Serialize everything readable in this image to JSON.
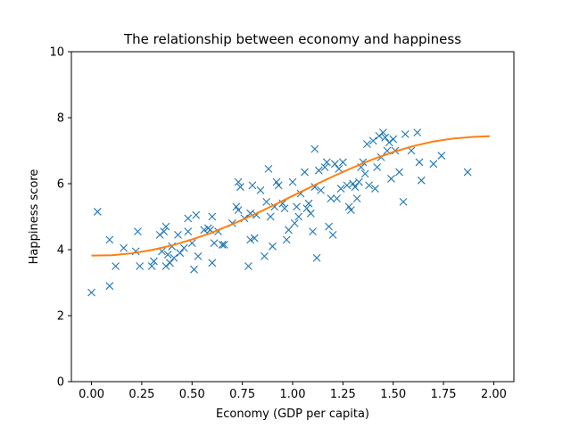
{
  "chart_data": {
    "type": "scatter",
    "title": "The relationship between economy and happiness",
    "xlabel": "Economy (GDP per capita)",
    "ylabel": "Happiness score",
    "xlim": [
      -0.1,
      2.1
    ],
    "ylim": [
      0,
      10
    ],
    "xticks": [
      0.0,
      0.25,
      0.5,
      0.75,
      1.0,
      1.25,
      1.5,
      1.75,
      2.0
    ],
    "xtick_labels": [
      "0.00",
      "0.25",
      "0.50",
      "0.75",
      "1.00",
      "1.25",
      "1.50",
      "1.75",
      "2.00"
    ],
    "yticks": [
      0,
      2,
      4,
      6,
      8,
      10
    ],
    "ytick_labels": [
      "0",
      "2",
      "4",
      "6",
      "8",
      "10"
    ],
    "grid": false,
    "series": [
      {
        "kind": "scatter",
        "marker": "x",
        "color": "#1f77b4",
        "points": [
          [
            0.0,
            2.7
          ],
          [
            0.03,
            5.15
          ],
          [
            0.09,
            2.9
          ],
          [
            0.09,
            4.3
          ],
          [
            0.12,
            3.5
          ],
          [
            0.16,
            4.05
          ],
          [
            0.22,
            3.95
          ],
          [
            0.23,
            4.55
          ],
          [
            0.24,
            3.5
          ],
          [
            0.3,
            3.5
          ],
          [
            0.31,
            3.65
          ],
          [
            0.34,
            4.45
          ],
          [
            0.35,
            3.95
          ],
          [
            0.36,
            4.55
          ],
          [
            0.37,
            4.7
          ],
          [
            0.37,
            3.5
          ],
          [
            0.38,
            3.85
          ],
          [
            0.39,
            3.6
          ],
          [
            0.4,
            4.1
          ],
          [
            0.41,
            3.75
          ],
          [
            0.43,
            4.45
          ],
          [
            0.44,
            3.9
          ],
          [
            0.46,
            4.05
          ],
          [
            0.48,
            4.95
          ],
          [
            0.48,
            4.55
          ],
          [
            0.5,
            4.2
          ],
          [
            0.51,
            3.4
          ],
          [
            0.52,
            5.05
          ],
          [
            0.53,
            3.8
          ],
          [
            0.56,
            4.6
          ],
          [
            0.58,
            4.65
          ],
          [
            0.59,
            4.6
          ],
          [
            0.6,
            3.6
          ],
          [
            0.6,
            5.0
          ],
          [
            0.61,
            4.2
          ],
          [
            0.63,
            4.55
          ],
          [
            0.65,
            4.15
          ],
          [
            0.66,
            4.15
          ],
          [
            0.7,
            4.8
          ],
          [
            0.72,
            5.3
          ],
          [
            0.73,
            6.05
          ],
          [
            0.73,
            5.2
          ],
          [
            0.74,
            5.9
          ],
          [
            0.76,
            4.95
          ],
          [
            0.78,
            3.5
          ],
          [
            0.79,
            5.1
          ],
          [
            0.79,
            4.3
          ],
          [
            0.8,
            5.95
          ],
          [
            0.81,
            4.35
          ],
          [
            0.82,
            5.05
          ],
          [
            0.84,
            5.8
          ],
          [
            0.86,
            3.8
          ],
          [
            0.87,
            5.45
          ],
          [
            0.88,
            6.45
          ],
          [
            0.89,
            5.0
          ],
          [
            0.9,
            4.1
          ],
          [
            0.91,
            5.3
          ],
          [
            0.92,
            6.05
          ],
          [
            0.93,
            5.95
          ],
          [
            0.95,
            5.4
          ],
          [
            0.96,
            5.25
          ],
          [
            0.97,
            4.3
          ],
          [
            0.98,
            4.6
          ],
          [
            1.0,
            6.05
          ],
          [
            1.01,
            4.8
          ],
          [
            1.02,
            5.3
          ],
          [
            1.03,
            5.0
          ],
          [
            1.04,
            5.7
          ],
          [
            1.06,
            6.35
          ],
          [
            1.07,
            5.25
          ],
          [
            1.08,
            5.4
          ],
          [
            1.09,
            5.1
          ],
          [
            1.1,
            4.55
          ],
          [
            1.11,
            7.05
          ],
          [
            1.11,
            5.9
          ],
          [
            1.12,
            3.75
          ],
          [
            1.13,
            6.4
          ],
          [
            1.14,
            5.8
          ],
          [
            1.16,
            6.5
          ],
          [
            1.17,
            6.65
          ],
          [
            1.18,
            4.7
          ],
          [
            1.19,
            5.55
          ],
          [
            1.2,
            4.45
          ],
          [
            1.21,
            6.6
          ],
          [
            1.22,
            5.55
          ],
          [
            1.23,
            6.45
          ],
          [
            1.24,
            5.85
          ],
          [
            1.25,
            6.65
          ],
          [
            1.27,
            5.95
          ],
          [
            1.28,
            5.3
          ],
          [
            1.29,
            5.2
          ],
          [
            1.3,
            6.0
          ],
          [
            1.31,
            5.9
          ],
          [
            1.32,
            5.55
          ],
          [
            1.33,
            6.05
          ],
          [
            1.34,
            6.5
          ],
          [
            1.35,
            6.65
          ],
          [
            1.36,
            6.3
          ],
          [
            1.37,
            7.2
          ],
          [
            1.38,
            5.95
          ],
          [
            1.4,
            7.3
          ],
          [
            1.41,
            5.85
          ],
          [
            1.42,
            6.5
          ],
          [
            1.43,
            7.45
          ],
          [
            1.44,
            6.8
          ],
          [
            1.45,
            7.55
          ],
          [
            1.46,
            7.4
          ],
          [
            1.47,
            7.0
          ],
          [
            1.48,
            7.25
          ],
          [
            1.49,
            6.15
          ],
          [
            1.5,
            7.35
          ],
          [
            1.51,
            7.0
          ],
          [
            1.53,
            6.35
          ],
          [
            1.55,
            5.45
          ],
          [
            1.56,
            7.5
          ],
          [
            1.59,
            7.0
          ],
          [
            1.62,
            7.55
          ],
          [
            1.63,
            6.65
          ],
          [
            1.64,
            6.1
          ],
          [
            1.7,
            6.6
          ],
          [
            1.74,
            6.85
          ],
          [
            1.87,
            6.35
          ]
        ]
      },
      {
        "kind": "line",
        "color": "#ff7f0e",
        "points": [
          [
            0.0,
            3.82
          ],
          [
            0.1,
            3.83
          ],
          [
            0.2,
            3.89
          ],
          [
            0.3,
            3.99
          ],
          [
            0.4,
            4.13
          ],
          [
            0.5,
            4.31
          ],
          [
            0.6,
            4.52
          ],
          [
            0.7,
            4.77
          ],
          [
            0.8,
            5.04
          ],
          [
            0.9,
            5.33
          ],
          [
            1.0,
            5.63
          ],
          [
            1.1,
            5.93
          ],
          [
            1.2,
            6.22
          ],
          [
            1.3,
            6.49
          ],
          [
            1.4,
            6.74
          ],
          [
            1.5,
            6.96
          ],
          [
            1.6,
            7.14
          ],
          [
            1.7,
            7.28
          ],
          [
            1.8,
            7.37
          ],
          [
            1.9,
            7.42
          ],
          [
            1.98,
            7.44
          ]
        ]
      }
    ]
  }
}
